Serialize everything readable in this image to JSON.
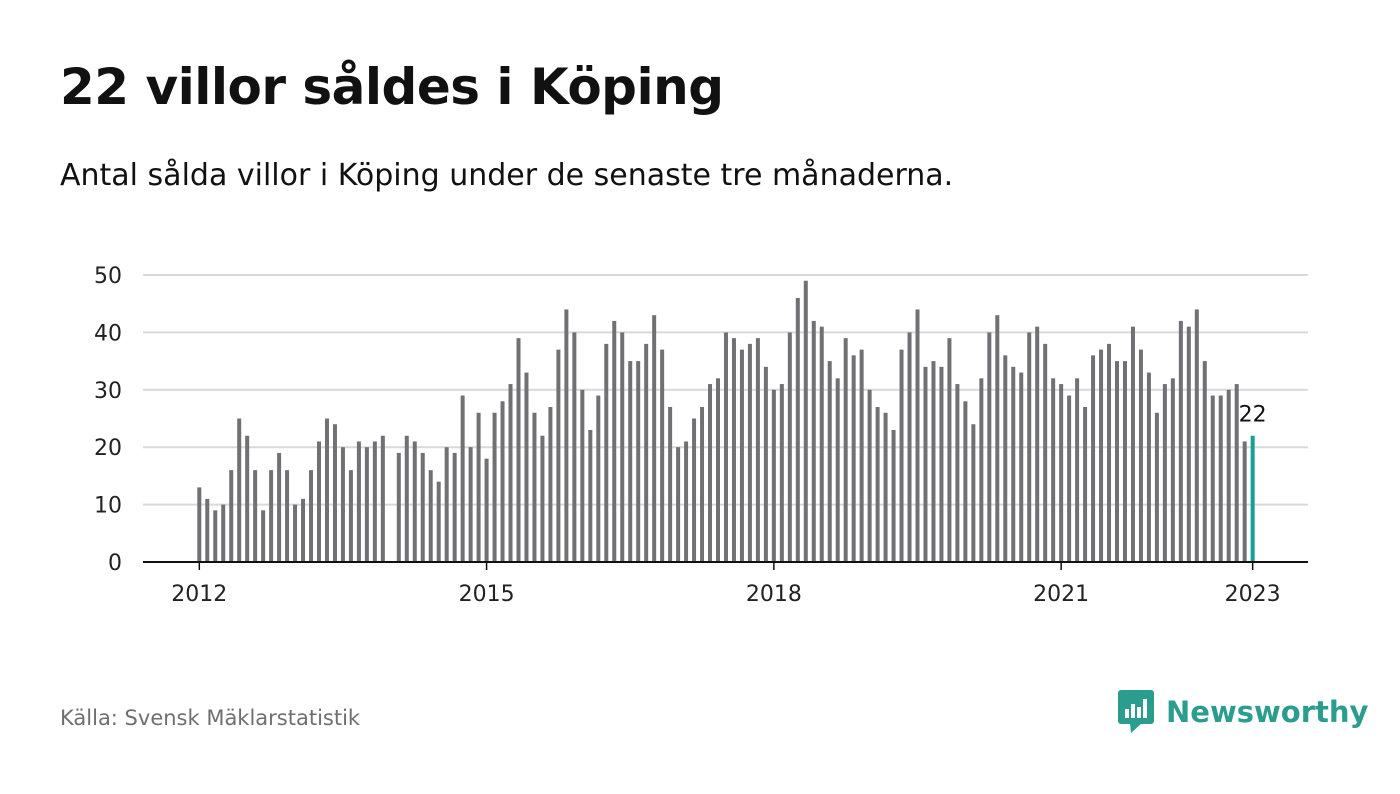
{
  "title": "22 villor såldes i Köping",
  "subtitle": "Antal sålda villor i Köping under de senaste tre månaderna.",
  "source": "Källa: Svensk Mäklarstatistik",
  "brand": {
    "name": "Newsworthy",
    "icon": "newsworthy-logo-icon"
  },
  "colors": {
    "bar": "#707075",
    "highlight": "#17a096",
    "grid": "#d9d9d9",
    "axis": "#111111",
    "brand": "#2a9d8f"
  },
  "chart_data": {
    "type": "bar",
    "x_start": "2012-01",
    "frequency": "monthly",
    "x_ticks": [
      "2012",
      "2015",
      "2018",
      "2021",
      "2023"
    ],
    "y_ticks": [
      0,
      10,
      20,
      30,
      40,
      50
    ],
    "ylim": [
      0,
      50
    ],
    "grid": true,
    "highlight_label": "22",
    "values": [
      13,
      11,
      9,
      10,
      16,
      25,
      22,
      16,
      9,
      16,
      19,
      16,
      10,
      11,
      16,
      21,
      25,
      24,
      20,
      16,
      21,
      20,
      21,
      22,
      null,
      19,
      22,
      21,
      19,
      16,
      14,
      20,
      19,
      29,
      20,
      26,
      18,
      26,
      28,
      31,
      39,
      33,
      26,
      22,
      27,
      37,
      44,
      40,
      30,
      23,
      29,
      38,
      42,
      40,
      35,
      35,
      38,
      43,
      37,
      27,
      20,
      21,
      25,
      27,
      31,
      32,
      40,
      39,
      37,
      38,
      39,
      34,
      30,
      31,
      40,
      46,
      49,
      42,
      41,
      35,
      32,
      39,
      36,
      37,
      30,
      27,
      26,
      23,
      37,
      40,
      44,
      34,
      35,
      34,
      39,
      31,
      28,
      24,
      32,
      40,
      43,
      36,
      34,
      33,
      40,
      41,
      38,
      32,
      31,
      29,
      32,
      27,
      36,
      37,
      38,
      35,
      35,
      41,
      37,
      33,
      26,
      31,
      32,
      42,
      41,
      44,
      35,
      29,
      29,
      30,
      31,
      21,
      22
    ]
  }
}
